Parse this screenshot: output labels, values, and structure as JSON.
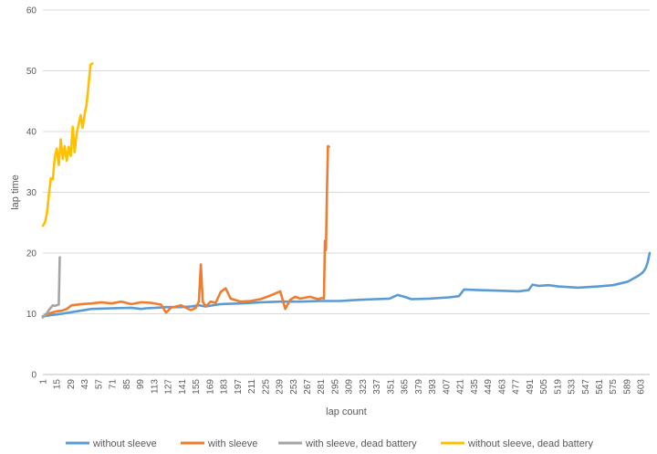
{
  "chart_data": {
    "type": "line",
    "title": "",
    "xlabel": "lap count",
    "ylabel": "lap time",
    "xlim": [
      1,
      612
    ],
    "ylim": [
      0,
      60
    ],
    "y_ticks": [
      0,
      10,
      20,
      30,
      40,
      50,
      60
    ],
    "x_ticks": [
      1,
      15,
      29,
      43,
      57,
      71,
      85,
      99,
      113,
      127,
      141,
      155,
      169,
      183,
      197,
      211,
      225,
      239,
      253,
      267,
      281,
      295,
      309,
      323,
      337,
      351,
      365,
      379,
      393,
      407,
      421,
      435,
      449,
      463,
      477,
      491,
      505,
      519,
      533,
      547,
      561,
      575,
      589,
      603
    ],
    "grid": true,
    "legend_position": "bottom",
    "series": [
      {
        "name": "without sleeve",
        "color": "#5b9bd5",
        "x": [
          1,
          10,
          20,
          35,
          50,
          70,
          90,
          100,
          105,
          115,
          125,
          140,
          150,
          158,
          165,
          180,
          200,
          220,
          240,
          260,
          280,
          300,
          320,
          335,
          350,
          358,
          365,
          372,
          390,
          410,
          420,
          425,
          440,
          460,
          480,
          490,
          494,
          500,
          510,
          520,
          540,
          560,
          575,
          590,
          600,
          605,
          608,
          610,
          612
        ],
        "y": [
          9.6,
          9.8,
          10.0,
          10.4,
          10.8,
          10.9,
          11.0,
          10.8,
          10.9,
          11.0,
          11.1,
          11.1,
          11.2,
          11.4,
          11.2,
          11.6,
          11.7,
          11.9,
          12.0,
          12.0,
          12.1,
          12.1,
          12.3,
          12.4,
          12.5,
          13.1,
          12.8,
          12.4,
          12.5,
          12.7,
          12.9,
          14.0,
          13.9,
          13.8,
          13.7,
          13.9,
          14.8,
          14.6,
          14.7,
          14.5,
          14.3,
          14.5,
          14.7,
          15.3,
          16.2,
          16.8,
          17.5,
          18.5,
          20.0
        ]
      },
      {
        "name": "with sleeve",
        "color": "#ed7d31",
        "x": [
          1,
          5,
          10,
          15,
          20,
          25,
          30,
          40,
          50,
          60,
          70,
          80,
          90,
          100,
          110,
          120,
          125,
          130,
          140,
          150,
          155,
          158,
          160,
          162,
          165,
          170,
          175,
          180,
          185,
          190,
          200,
          210,
          220,
          230,
          240,
          245,
          250,
          255,
          260,
          270,
          278,
          282,
          284,
          285,
          286,
          287,
          288,
          289
        ],
        "y": [
          9.5,
          9.9,
          10.2,
          10.4,
          10.5,
          10.8,
          11.4,
          11.6,
          11.7,
          11.9,
          11.7,
          12.0,
          11.6,
          11.9,
          11.8,
          11.5,
          10.2,
          11.0,
          11.4,
          10.6,
          11.0,
          12.0,
          18.1,
          12.0,
          11.2,
          12.0,
          11.8,
          13.6,
          14.2,
          12.5,
          12.0,
          12.1,
          12.4,
          13.0,
          13.7,
          10.8,
          12.3,
          12.8,
          12.5,
          12.8,
          12.4,
          12.6,
          12.5,
          22.0,
          20.5,
          30.0,
          37.6,
          37.5
        ]
      },
      {
        "name": "with sleeve, dead battery",
        "color": "#a5a5a5",
        "x": [
          1,
          3,
          5,
          7,
          9,
          11,
          13,
          15,
          17,
          18
        ],
        "y": [
          9.4,
          9.8,
          10.1,
          10.6,
          11.0,
          11.4,
          11.3,
          11.4,
          11.5,
          19.3
        ]
      },
      {
        "name": "without sleeve, dead battery",
        "color": "#ffc000",
        "x": [
          1,
          3,
          5,
          7,
          9,
          11,
          13,
          15,
          17,
          19,
          21,
          23,
          25,
          27,
          29,
          31,
          33,
          35,
          37,
          39,
          41,
          43,
          45,
          47,
          49,
          51
        ],
        "y": [
          24.5,
          25.0,
          26.5,
          29.5,
          32.3,
          32.1,
          35.8,
          37.2,
          34.5,
          38.7,
          35.5,
          37.6,
          35.2,
          37.5,
          36.0,
          40.8,
          36.6,
          39.7,
          41.2,
          42.7,
          40.6,
          42.8,
          44.5,
          47.8,
          51.0,
          51.2
        ]
      }
    ]
  }
}
